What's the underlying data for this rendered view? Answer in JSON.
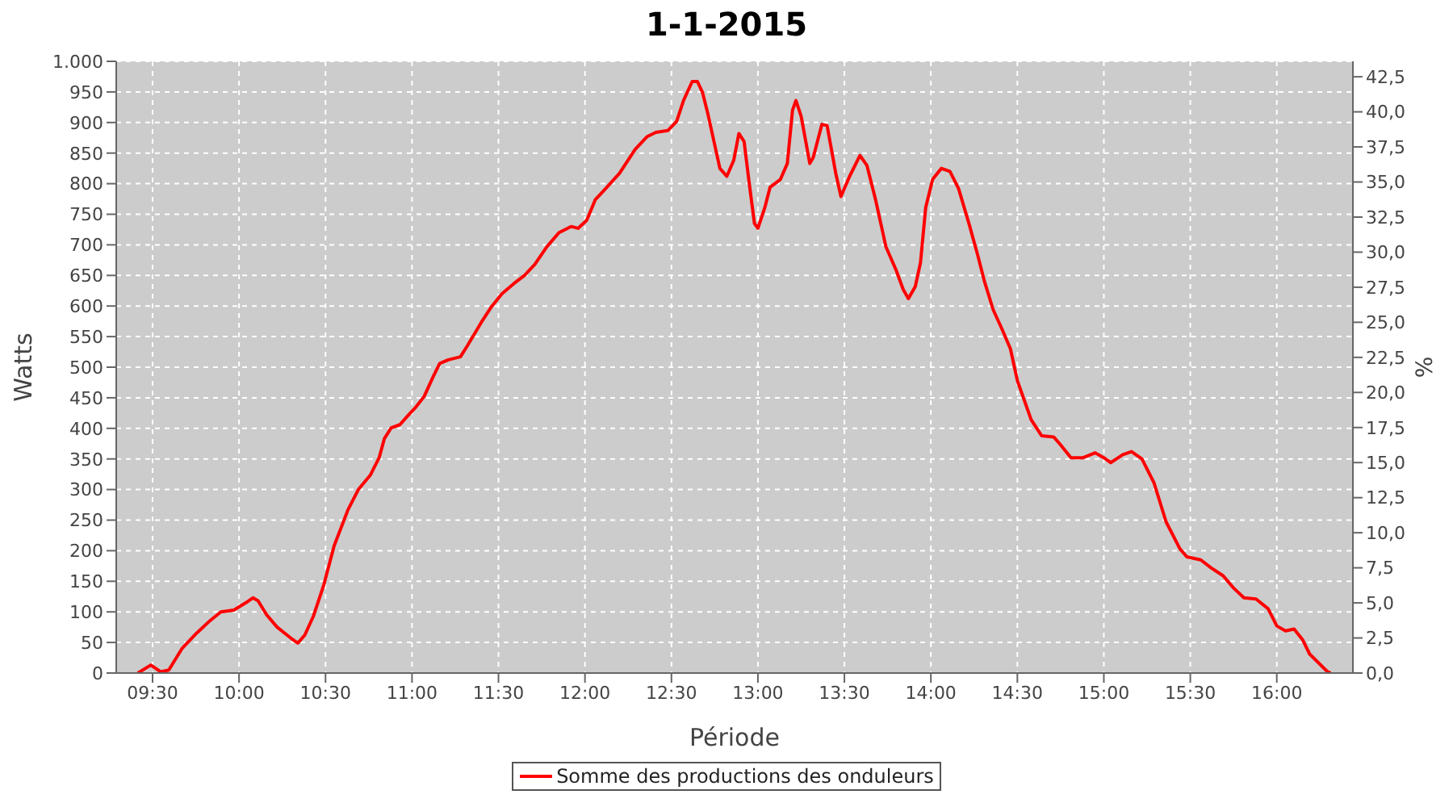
{
  "chart_data": {
    "type": "line",
    "title": "1-1-2015",
    "xlabel": "Période",
    "ylabel": "Watts",
    "y2label": "%",
    "x": [
      9.415,
      9.49,
      9.547,
      9.594,
      9.67,
      9.754,
      9.83,
      9.895,
      9.97,
      10.04,
      10.08,
      10.11,
      10.16,
      10.22,
      10.3,
      10.34,
      10.38,
      10.43,
      10.49,
      10.55,
      10.63,
      10.69,
      10.76,
      10.81,
      10.84,
      10.88,
      10.93,
      10.98,
      11.02,
      11.07,
      11.12,
      11.16,
      11.21,
      11.28,
      11.32,
      11.4,
      11.46,
      11.52,
      11.59,
      11.65,
      11.71,
      11.78,
      11.85,
      11.92,
      11.96,
      12.01,
      12.06,
      12.12,
      12.2,
      12.29,
      12.36,
      12.41,
      12.48,
      12.53,
      12.57,
      12.62,
      12.65,
      12.68,
      12.71,
      12.78,
      12.82,
      12.86,
      12.89,
      12.92,
      12.95,
      12.98,
      13.0,
      13.04,
      13.07,
      13.13,
      13.17,
      13.2,
      13.22,
      13.25,
      13.3,
      13.32,
      13.37,
      13.4,
      13.45,
      13.48,
      13.53,
      13.59,
      13.63,
      13.68,
      13.74,
      13.8,
      13.84,
      13.87,
      13.91,
      13.94,
      13.97,
      14.01,
      14.06,
      14.11,
      14.16,
      14.22,
      14.27,
      14.31,
      14.36,
      14.41,
      14.46,
      14.5,
      14.58,
      14.64,
      14.71,
      14.75,
      14.81,
      14.88,
      14.95,
      15.0,
      15.04,
      15.11,
      15.16,
      15.22,
      15.29,
      15.36,
      15.44,
      15.48,
      15.56,
      15.62,
      15.69,
      15.75,
      15.81,
      15.88,
      15.95,
      16.0,
      16.05,
      16.1,
      16.15,
      16.19,
      16.29,
      16.31
    ],
    "series": [
      {
        "name": "Somme des productions des onduleurs",
        "color": "#ff0000",
        "values": [
          0,
          13,
          2,
          5,
          40,
          65,
          85,
          100,
          103,
          115,
          123,
          118,
          95,
          75,
          57,
          49,
          62,
          93,
          144,
          208,
          267,
          300,
          324,
          352,
          383,
          401,
          406,
          422,
          434,
          452,
          483,
          506,
          512,
          517,
          535,
          573,
          599,
          620,
          637,
          650,
          668,
          697,
          720,
          730,
          727,
          740,
          774,
          792,
          817,
          856,
          877,
          884,
          887,
          902,
          936,
          967,
          967,
          949,
          915,
          825,
          812,
          838,
          882,
          869,
          800,
          735,
          727,
          761,
          794,
          807,
          833,
          920,
          936,
          910,
          833,
          843,
          897,
          895,
          817,
          779,
          812,
          846,
          830,
          774,
          697,
          658,
          627,
          612,
          632,
          671,
          761,
          807,
          825,
          820,
          792,
          735,
          684,
          640,
          594,
          563,
          530,
          478,
          414,
          388,
          386,
          373,
          352,
          352,
          360,
          352,
          344,
          357,
          362,
          350,
          311,
          247,
          203,
          190,
          185,
          172,
          159,
          139,
          123,
          121,
          105,
          77,
          69,
          72,
          54,
          31,
          3,
          0
        ]
      }
    ],
    "xlim": [
      9.29,
      16.44
    ],
    "xticks": [
      {
        "value": 9.5,
        "label": "09:30"
      },
      {
        "value": 10,
        "label": "10:00"
      },
      {
        "value": 10.5,
        "label": "10:30"
      },
      {
        "value": 11,
        "label": "11:00"
      },
      {
        "value": 11.5,
        "label": "11:30"
      },
      {
        "value": 12,
        "label": "12:00"
      },
      {
        "value": 12.5,
        "label": "12:30"
      },
      {
        "value": 13,
        "label": "13:00"
      },
      {
        "value": 13.5,
        "label": "13:30"
      },
      {
        "value": 14,
        "label": "14:00"
      },
      {
        "value": 14.5,
        "label": "14:30"
      },
      {
        "value": 15,
        "label": "15:00"
      },
      {
        "value": 15.5,
        "label": "15:30"
      },
      {
        "value": 16,
        "label": "16:00"
      }
    ],
    "ylim": [
      0,
      1000
    ],
    "yticks": [
      0,
      50,
      100,
      150,
      200,
      250,
      300,
      350,
      400,
      450,
      500,
      550,
      600,
      650,
      700,
      750,
      800,
      850,
      900,
      950,
      {
        "value": 1000,
        "label": "1.000"
      }
    ],
    "y2lim": [
      0,
      43.6
    ],
    "y2ticks": [
      {
        "value": 0,
        "label": "0,0"
      },
      {
        "value": 2.5,
        "label": "2,5"
      },
      {
        "value": 5,
        "label": "5,0"
      },
      {
        "value": 7.5,
        "label": "7,5"
      },
      {
        "value": 10,
        "label": "10,0"
      },
      {
        "value": 12.5,
        "label": "12,5"
      },
      {
        "value": 15,
        "label": "15,0"
      },
      {
        "value": 17.5,
        "label": "17,5"
      },
      {
        "value": 20,
        "label": "20,0"
      },
      {
        "value": 22.5,
        "label": "22,5"
      },
      {
        "value": 25,
        "label": "25,0"
      },
      {
        "value": 27.5,
        "label": "27,5"
      },
      {
        "value": 30,
        "label": "30,0"
      },
      {
        "value": 32.5,
        "label": "32,5"
      },
      {
        "value": 35,
        "label": "35,0"
      },
      {
        "value": 37.5,
        "label": "37,5"
      },
      {
        "value": 40,
        "label": "40,0"
      },
      {
        "value": 42.5,
        "label": "42,5"
      }
    ],
    "grid": true,
    "legend": "bottom",
    "marker": "none",
    "line_style": "solid"
  }
}
